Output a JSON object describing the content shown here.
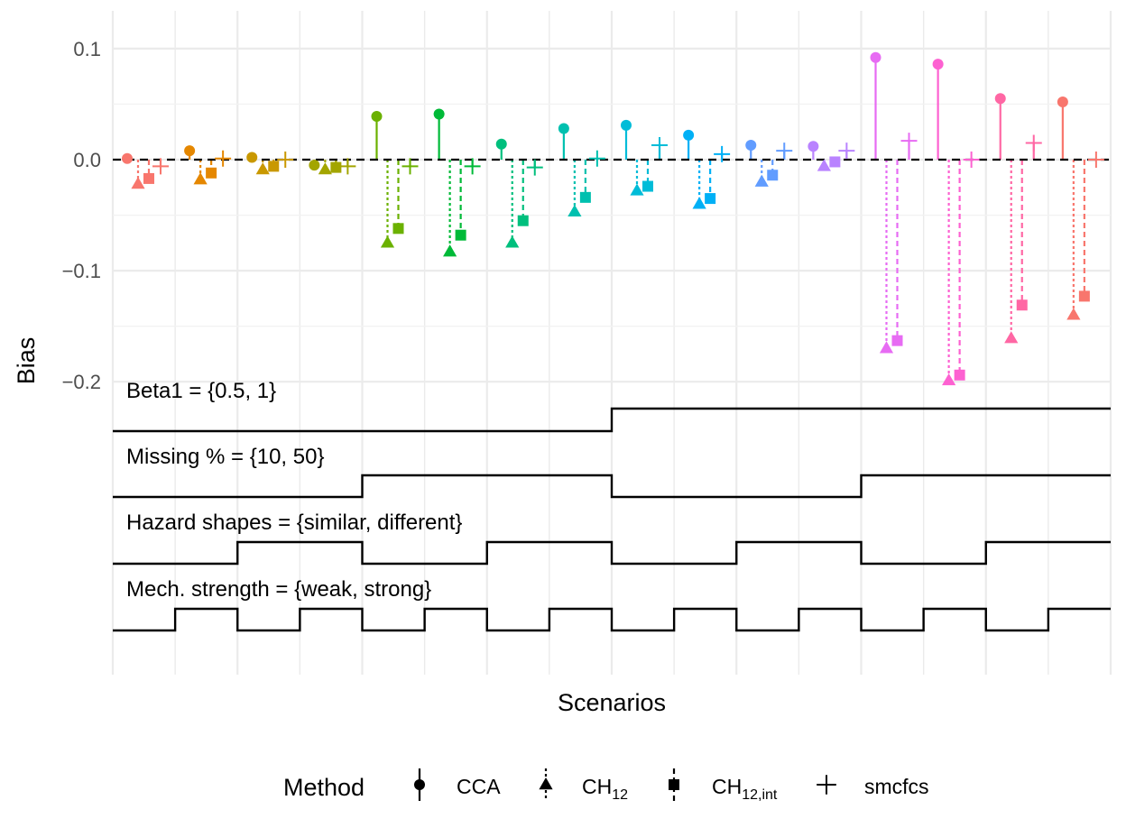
{
  "chart_data": {
    "type": "lollipop",
    "xlabel": "Scenarios",
    "ylabel": "Bias",
    "ylim": [
      -0.2,
      0.1
    ],
    "yticks": [
      "0.1",
      "0.0",
      "−0.1",
      "−0.2"
    ],
    "ytick_values": [
      0.1,
      0.0,
      -0.1,
      -0.2
    ],
    "grid": true,
    "reference_line": 0,
    "legend": {
      "title": "Method",
      "position": "bottom",
      "entries": [
        {
          "label": "CCA",
          "sub": "",
          "shape": "circle",
          "line": "solid"
        },
        {
          "label": "CH",
          "sub": "12",
          "shape": "triangle",
          "line": "dotted"
        },
        {
          "label": "CH",
          "sub": "12,int",
          "shape": "square",
          "line": "dashed"
        },
        {
          "label": "smcfcs",
          "sub": "",
          "shape": "plus",
          "line": "solid"
        }
      ]
    },
    "scenario_colors": [
      "#F8766D",
      "#E58700",
      "#C99800",
      "#A3A500",
      "#6BB100",
      "#00BA38",
      "#00BF7D",
      "#00C0AF",
      "#00BCD8",
      "#00B0F6",
      "#619CFF",
      "#B983FF",
      "#E76BF3",
      "#FD61D1",
      "#FF67A4",
      "#F8766D"
    ],
    "series": [
      {
        "name": "CCA",
        "values": [
          0.001,
          0.008,
          0.002,
          -0.005,
          0.039,
          0.041,
          0.014,
          0.028,
          0.031,
          0.022,
          0.013,
          0.012,
          0.092,
          0.086,
          0.055,
          0.052
        ]
      },
      {
        "name": "CH12",
        "values": [
          -0.022,
          -0.018,
          -0.009,
          -0.009,
          -0.075,
          -0.083,
          -0.075,
          -0.047,
          -0.028,
          -0.04,
          -0.02,
          -0.006,
          -0.17,
          -0.199,
          -0.161,
          -0.14
        ]
      },
      {
        "name": "CH12,int",
        "values": [
          -0.017,
          -0.012,
          -0.006,
          -0.007,
          -0.062,
          -0.068,
          -0.055,
          -0.034,
          -0.024,
          -0.035,
          -0.014,
          -0.002,
          -0.163,
          -0.194,
          -0.131,
          -0.123
        ]
      },
      {
        "name": "smcfcs",
        "values": [
          -0.006,
          0.001,
          0.0,
          -0.006,
          -0.006,
          -0.006,
          -0.007,
          0.001,
          0.013,
          0.005,
          0.008,
          0.008,
          0.017,
          0.0,
          0.015,
          0.0
        ]
      }
    ],
    "factors": [
      {
        "label": "Beta1 = {0.5, 1}",
        "levels": [
          0,
          0,
          0,
          0,
          0,
          0,
          0,
          0,
          1,
          1,
          1,
          1,
          1,
          1,
          1,
          1
        ]
      },
      {
        "label": "Missing % = {10, 50}",
        "levels": [
          0,
          0,
          0,
          0,
          1,
          1,
          1,
          1,
          0,
          0,
          0,
          0,
          1,
          1,
          1,
          1
        ]
      },
      {
        "label": "Hazard shapes = {similar, different}",
        "levels": [
          0,
          0,
          1,
          1,
          0,
          0,
          1,
          1,
          0,
          0,
          1,
          1,
          0,
          0,
          1,
          1
        ]
      },
      {
        "label": "Mech. strength = {weak, strong}",
        "levels": [
          0,
          1,
          0,
          1,
          0,
          1,
          0,
          1,
          0,
          1,
          0,
          1,
          0,
          1,
          0,
          1
        ]
      }
    ]
  }
}
